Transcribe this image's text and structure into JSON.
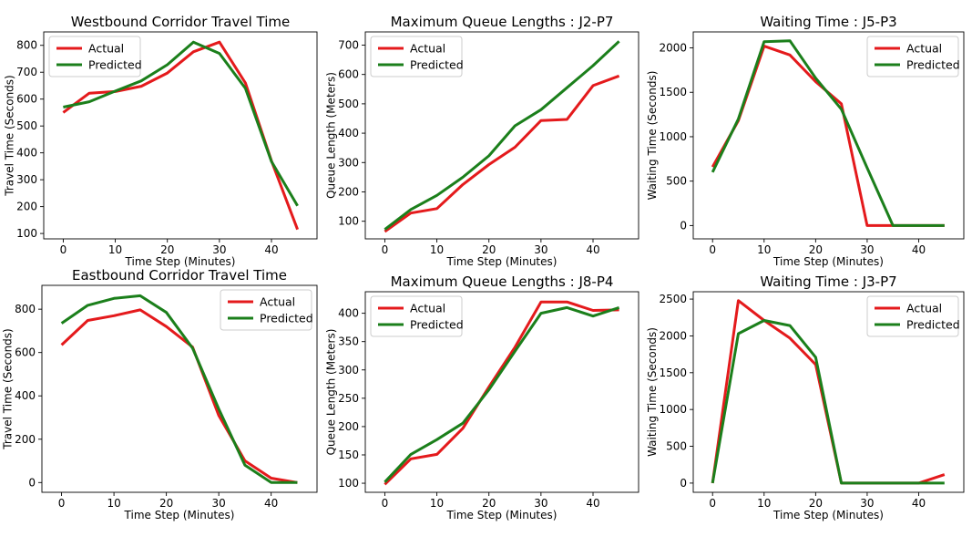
{
  "figure": {
    "colors": {
      "actual": "#e41a1c",
      "predicted": "#1b7f1b"
    }
  },
  "chart_data": [
    {
      "type": "line",
      "title": "Westbound Corridor Travel Time",
      "xlabel": "Time Step (Minutes)",
      "ylabel": "Travel Time (Seconds)",
      "x": [
        0,
        5,
        10,
        15,
        20,
        25,
        30,
        35,
        40,
        45
      ],
      "xlim": [
        -3.75,
        48.75
      ],
      "ylim": [
        80,
        850
      ],
      "xticks": [
        0,
        10,
        20,
        30,
        40
      ],
      "yticks": [
        100,
        200,
        300,
        400,
        500,
        600,
        700,
        800
      ],
      "legend": "top-left",
      "series": [
        {
          "name": "Actual",
          "color": "#e41a1c",
          "values": [
            550,
            622,
            628,
            648,
            697,
            776,
            812,
            660,
            370,
            115
          ]
        },
        {
          "name": "Predicted",
          "color": "#1b7f1b",
          "values": [
            570,
            590,
            630,
            668,
            728,
            812,
            770,
            640,
            368,
            203
          ]
        }
      ]
    },
    {
      "type": "line",
      "title": "Maximum Queue Lengths : J2-P7",
      "xlabel": "Time Step (Minutes)",
      "ylabel": "Queue Length (Meters)",
      "x": [
        0,
        5,
        10,
        15,
        20,
        25,
        30,
        35,
        40,
        45
      ],
      "xlim": [
        -3.75,
        48.75
      ],
      "ylim": [
        40,
        745
      ],
      "xticks": [
        0,
        10,
        20,
        30,
        40
      ],
      "yticks": [
        100,
        200,
        300,
        400,
        500,
        600,
        700
      ],
      "legend": "top-left",
      "series": [
        {
          "name": "Actual",
          "color": "#e41a1c",
          "values": [
            65,
            128,
            143,
            225,
            293,
            352,
            443,
            447,
            562,
            595
          ]
        },
        {
          "name": "Predicted",
          "color": "#1b7f1b",
          "values": [
            72,
            140,
            188,
            250,
            323,
            425,
            480,
            555,
            630,
            713
          ]
        }
      ]
    },
    {
      "type": "line",
      "title": "Waiting Time : J5-P3",
      "xlabel": "Time Step (Minutes)",
      "ylabel": "Waiting Time (Seconds)",
      "x": [
        0,
        5,
        10,
        15,
        20,
        25,
        30,
        35,
        40,
        45
      ],
      "xlim": [
        -3.75,
        48.75
      ],
      "ylim": [
        -150,
        2180
      ],
      "xticks": [
        0,
        10,
        20,
        30,
        40
      ],
      "yticks": [
        0,
        500,
        1000,
        1500,
        2000
      ],
      "legend": "top-right",
      "series": [
        {
          "name": "Actual",
          "color": "#e41a1c",
          "values": [
            660,
            1180,
            2020,
            1920,
            1620,
            1370,
            0,
            0,
            0,
            0
          ]
        },
        {
          "name": "Predicted",
          "color": "#1b7f1b",
          "values": [
            600,
            1200,
            2070,
            2080,
            1660,
            1310,
            650,
            0,
            0,
            0
          ]
        }
      ]
    },
    {
      "type": "line",
      "title": "Eastbound Corridor Travel Time",
      "xlabel": "Time Step (Minutes)",
      "ylabel": "Travel Time (Seconds)",
      "x": [
        0,
        5,
        10,
        15,
        20,
        25,
        30,
        35,
        40,
        45
      ],
      "xlim": [
        -3.75,
        48.75
      ],
      "ylim": [
        -45,
        910
      ],
      "xticks": [
        0,
        10,
        20,
        30,
        40
      ],
      "yticks": [
        0,
        200,
        400,
        600,
        800
      ],
      "legend": "top-right",
      "series": [
        {
          "name": "Actual",
          "color": "#e41a1c",
          "values": [
            635,
            748,
            770,
            797,
            720,
            625,
            310,
            100,
            20,
            0
          ]
        },
        {
          "name": "Predicted",
          "color": "#1b7f1b",
          "values": [
            735,
            818,
            850,
            862,
            785,
            620,
            340,
            80,
            0,
            0
          ]
        }
      ]
    },
    {
      "type": "line",
      "title": "Maximum Queue Lengths : J8-P4",
      "xlabel": "Time Step (Minutes)",
      "ylabel": "Queue Length (Meters)",
      "x": [
        0,
        5,
        10,
        15,
        20,
        25,
        30,
        35,
        40,
        45
      ],
      "xlim": [
        -3.75,
        48.75
      ],
      "ylim": [
        84,
        438
      ],
      "xticks": [
        0,
        10,
        20,
        30,
        40
      ],
      "yticks": [
        100,
        150,
        200,
        250,
        300,
        350,
        400
      ],
      "legend": "top-left",
      "series": [
        {
          "name": "Actual",
          "color": "#e41a1c",
          "values": [
            98,
            143,
            151,
            197,
            270,
            340,
            420,
            420,
            405,
            406
          ]
        },
        {
          "name": "Predicted",
          "color": "#1b7f1b",
          "values": [
            102,
            151,
            177,
            206,
            265,
            333,
            400,
            410,
            395,
            410
          ]
        }
      ]
    },
    {
      "type": "line",
      "title": "Waiting Time : J3-P7",
      "xlabel": "Time Step (Minutes)",
      "ylabel": "Waiting Time (Seconds)",
      "x": [
        0,
        5,
        10,
        15,
        20,
        25,
        30,
        35,
        40,
        45
      ],
      "xlim": [
        -3.75,
        48.75
      ],
      "ylim": [
        -125,
        2600
      ],
      "xticks": [
        0,
        10,
        20,
        30,
        40
      ],
      "yticks": [
        0,
        500,
        1000,
        1500,
        2000,
        2500
      ],
      "legend": "top-right",
      "series": [
        {
          "name": "Actual",
          "color": "#e41a1c",
          "values": [
            0,
            2480,
            2210,
            1970,
            1610,
            0,
            0,
            0,
            0,
            115
          ]
        },
        {
          "name": "Predicted",
          "color": "#1b7f1b",
          "values": [
            0,
            2030,
            2210,
            2140,
            1710,
            0,
            0,
            0,
            0,
            0
          ]
        }
      ]
    }
  ]
}
